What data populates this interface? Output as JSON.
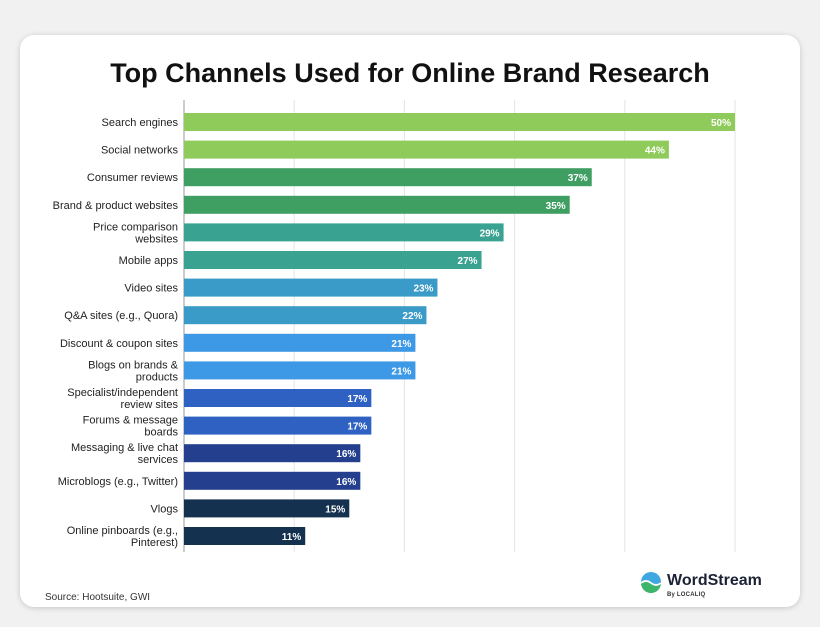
{
  "chart_data": {
    "type": "bar",
    "orientation": "horizontal",
    "title": "Top Channels Used for Online Brand Research",
    "categories": [
      [
        "Search engines"
      ],
      [
        "Social networks"
      ],
      [
        "Consumer reviews"
      ],
      [
        "Brand & product websites"
      ],
      [
        "Price comparison",
        "websites"
      ],
      [
        "Mobile apps"
      ],
      [
        "Video sites"
      ],
      [
        "Q&A sites (e.g., Quora)"
      ],
      [
        "Discount & coupon sites"
      ],
      [
        "Blogs on brands &",
        "products"
      ],
      [
        "Specialist/independent",
        "review sites"
      ],
      [
        "Forums & message",
        "boards"
      ],
      [
        "Messaging & live chat",
        "services"
      ],
      [
        "Microblogs (e.g., Twitter)"
      ],
      [
        "Vlogs"
      ],
      [
        "Online pinboards (e.g.,",
        "Pinterest)"
      ]
    ],
    "values": [
      50,
      44,
      37,
      35,
      29,
      27,
      23,
      22,
      21,
      21,
      17,
      17,
      16,
      16,
      15,
      11
    ],
    "value_suffix": "%",
    "xlim": [
      0,
      50
    ],
    "grid": true,
    "colors": [
      "#8ecb5a",
      "#8ecb5a",
      "#3f9e62",
      "#3f9e62",
      "#3aa291",
      "#3aa291",
      "#3a9bc8",
      "#3a9bc8",
      "#3d99e6",
      "#3d99e6",
      "#2f61c3",
      "#2f61c3",
      "#233f8d",
      "#233f8d",
      "#14314f",
      "#14314f"
    ]
  },
  "source": "Source: Hootsuite, GWI",
  "brand": {
    "name": "WordStream",
    "sub": "By LOCALIQ",
    "colors": {
      "top": "#3fa8e0",
      "bottom": "#3db56b"
    }
  }
}
